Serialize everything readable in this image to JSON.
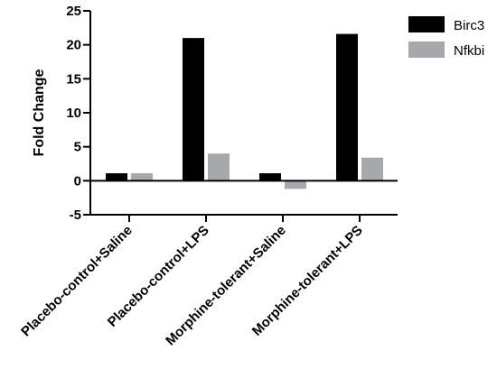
{
  "chart_data": {
    "type": "bar",
    "ylabel": "Fold Change",
    "xlabel": "",
    "ylim": [
      -5,
      25
    ],
    "yticks": [
      -5,
      0,
      5,
      10,
      15,
      20,
      25
    ],
    "categories": [
      "Placebo-control+Saline",
      "Placebo-control+LPS",
      "Morphine-tolerant+Saline",
      "Morphine-tolerant+LPS"
    ],
    "series": [
      {
        "name": "Birc3",
        "color": "#000000",
        "values": [
          1.1,
          21.0,
          1.1,
          21.6
        ]
      },
      {
        "name": "Nfkbi",
        "color": "#a6a8ab",
        "values": [
          1.1,
          4.0,
          -1.2,
          3.4
        ]
      }
    ],
    "legend": "top-right",
    "grid": false
  }
}
